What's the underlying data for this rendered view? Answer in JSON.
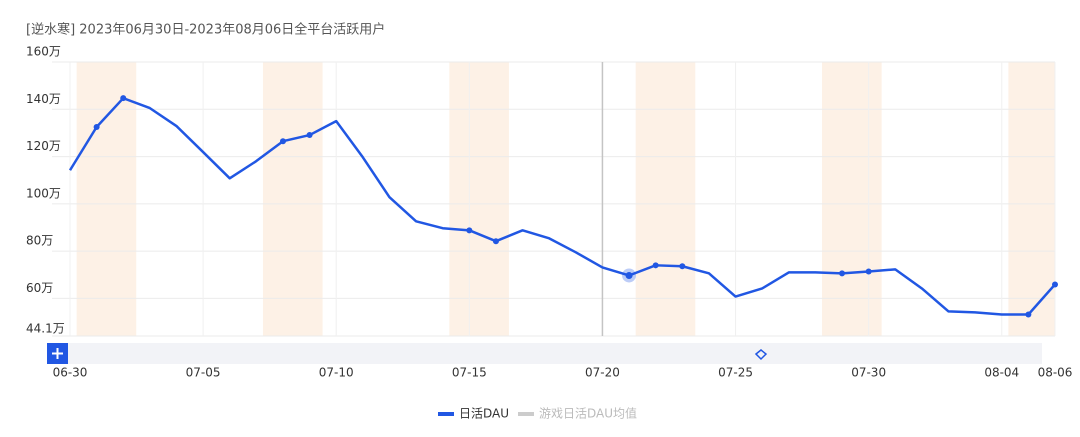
{
  "chart_data": {
    "type": "line",
    "title": "[逆水寒]  2023年06月30日-2023年08月06日全平台活跃用户",
    "categories": [
      "06-30",
      null,
      null,
      null,
      null,
      "07-05",
      null,
      null,
      null,
      null,
      "07-10",
      null,
      null,
      null,
      null,
      "07-15",
      null,
      null,
      null,
      null,
      "07-20",
      null,
      null,
      null,
      null,
      "07-25",
      null,
      null,
      null,
      null,
      "07-30",
      null,
      null,
      null,
      null,
      "08-04",
      null,
      "08-06"
    ],
    "series": [
      {
        "name": "日活DAU",
        "color": "#2157e3",
        "values": [
          114.2,
          132.5,
          144.7,
          140.5,
          132.9,
          121.9,
          110.8,
          118.1,
          126.5,
          129.1,
          135,
          119.7,
          102.8,
          92.6,
          89.7,
          88.8,
          84.2,
          88.8,
          85.4,
          79.5,
          73.1,
          69.7,
          74,
          73.6,
          70.6,
          60.8,
          64.2,
          71,
          71,
          70.6,
          71.4,
          72.3,
          64.2,
          54.5,
          54.1,
          53.2,
          53.2,
          65.9
        ]
      }
    ],
    "inactive_legend": {
      "name": "游戏日活DAU均值",
      "color": "#cccccc"
    },
    "ylim": [
      44.1,
      160
    ],
    "yticks": [
      {
        "value": 44.1,
        "label": "44.1万"
      },
      {
        "value": 60,
        "label": "60万"
      },
      {
        "value": 80,
        "label": "80万"
      },
      {
        "value": 100,
        "label": "100万"
      },
      {
        "value": 120,
        "label": "120万"
      },
      {
        "value": 140,
        "label": "140万"
      },
      {
        "value": 160,
        "label": "160万"
      }
    ],
    "grid": true
  }
}
